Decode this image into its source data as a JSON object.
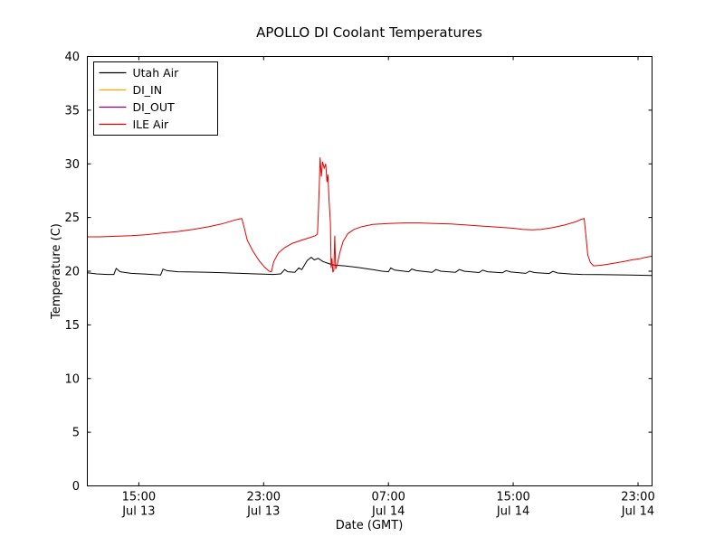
{
  "chart_data": {
    "type": "line",
    "title": "APOLLO DI Coolant Temperatures",
    "xlabel": "Date (GMT)",
    "ylabel": "Temperature (C)",
    "x_unit": "hours since Jul 13 00:00 GMT",
    "xlim": [
      11.7,
      47.9
    ],
    "ylim": [
      0,
      40
    ],
    "grid": false,
    "frame": true,
    "yticks": [
      0,
      5,
      10,
      15,
      20,
      25,
      30,
      35,
      40
    ],
    "xticks": [
      {
        "value": 15,
        "time": "15:00",
        "date": "Jul 13"
      },
      {
        "value": 23,
        "time": "23:00",
        "date": "Jul 13"
      },
      {
        "value": 31,
        "time": "07:00",
        "date": "Jul 14"
      },
      {
        "value": 39,
        "time": "15:00",
        "date": "Jul 14"
      },
      {
        "value": 47,
        "time": "23:00",
        "date": "Jul 14"
      }
    ],
    "legend": {
      "position": "upper left",
      "entries": [
        "Utah Air",
        "DI_IN",
        "DI_OUT",
        "ILE Air"
      ]
    },
    "series": [
      {
        "name": "Utah Air",
        "color": "#000000",
        "points": [
          [
            11.7,
            19.85
          ],
          [
            12.3,
            19.75
          ],
          [
            13.0,
            19.7
          ],
          [
            13.4,
            19.7
          ],
          [
            13.55,
            20.25
          ],
          [
            13.8,
            19.95
          ],
          [
            14.5,
            19.8
          ],
          [
            15.5,
            19.72
          ],
          [
            16.4,
            19.65
          ],
          [
            16.55,
            20.2
          ],
          [
            16.8,
            20.05
          ],
          [
            17.5,
            19.95
          ],
          [
            18.5,
            19.92
          ],
          [
            19.5,
            19.9
          ],
          [
            20.5,
            19.85
          ],
          [
            21.5,
            19.8
          ],
          [
            22.5,
            19.75
          ],
          [
            23.0,
            19.72
          ],
          [
            23.6,
            19.7
          ],
          [
            24.1,
            19.75
          ],
          [
            24.35,
            20.15
          ],
          [
            24.55,
            19.95
          ],
          [
            25.0,
            19.9
          ],
          [
            25.25,
            20.3
          ],
          [
            25.45,
            20.15
          ],
          [
            25.8,
            21.0
          ],
          [
            26.05,
            21.3
          ],
          [
            26.25,
            21.05
          ],
          [
            26.5,
            21.2
          ],
          [
            26.8,
            20.9
          ],
          [
            27.1,
            20.75
          ],
          [
            27.4,
            20.6
          ],
          [
            27.7,
            20.55
          ],
          [
            28.2,
            20.5
          ],
          [
            29.0,
            20.35
          ],
          [
            30.0,
            20.15
          ],
          [
            30.6,
            20.0
          ],
          [
            31.0,
            19.95
          ],
          [
            31.15,
            20.3
          ],
          [
            31.4,
            20.1
          ],
          [
            32.3,
            19.95
          ],
          [
            32.5,
            20.2
          ],
          [
            32.8,
            20.05
          ],
          [
            33.8,
            19.9
          ],
          [
            34.05,
            20.15
          ],
          [
            34.35,
            20.0
          ],
          [
            35.3,
            19.9
          ],
          [
            35.55,
            20.15
          ],
          [
            35.85,
            20.0
          ],
          [
            36.8,
            19.87
          ],
          [
            37.05,
            20.1
          ],
          [
            37.35,
            19.95
          ],
          [
            38.3,
            19.85
          ],
          [
            38.55,
            20.05
          ],
          [
            38.85,
            19.92
          ],
          [
            39.8,
            19.8
          ],
          [
            40.05,
            20.0
          ],
          [
            40.35,
            19.87
          ],
          [
            41.3,
            19.78
          ],
          [
            41.55,
            19.98
          ],
          [
            41.85,
            19.83
          ],
          [
            42.8,
            19.73
          ],
          [
            43.4,
            19.7
          ],
          [
            44.5,
            19.68
          ],
          [
            45.5,
            19.66
          ],
          [
            46.5,
            19.64
          ],
          [
            47.9,
            19.6
          ]
        ]
      },
      {
        "name": "DI_IN",
        "color": "#ffa500",
        "points": []
      },
      {
        "name": "DI_OUT",
        "color": "#800080",
        "points": []
      },
      {
        "name": "ILE Air",
        "color": "#e60000",
        "points": [
          [
            11.7,
            23.2
          ],
          [
            12.5,
            23.2
          ],
          [
            13.5,
            23.25
          ],
          [
            14.5,
            23.3
          ],
          [
            15.5,
            23.4
          ],
          [
            16.5,
            23.55
          ],
          [
            17.5,
            23.7
          ],
          [
            18.5,
            23.9
          ],
          [
            19.5,
            24.15
          ],
          [
            20.3,
            24.4
          ],
          [
            21.0,
            24.7
          ],
          [
            21.45,
            24.88
          ],
          [
            21.6,
            24.9
          ],
          [
            21.75,
            24.1
          ],
          [
            21.95,
            22.9
          ],
          [
            22.3,
            21.9
          ],
          [
            22.7,
            21.0
          ],
          [
            23.05,
            20.4
          ],
          [
            23.35,
            20.0
          ],
          [
            23.5,
            19.95
          ],
          [
            23.65,
            20.9
          ],
          [
            23.95,
            21.7
          ],
          [
            24.35,
            22.2
          ],
          [
            24.85,
            22.6
          ],
          [
            25.45,
            22.9
          ],
          [
            26.0,
            23.15
          ],
          [
            26.3,
            23.3
          ],
          [
            26.45,
            23.45
          ],
          [
            26.52,
            26.0
          ],
          [
            26.58,
            28.5
          ],
          [
            26.62,
            30.6
          ],
          [
            26.7,
            28.8
          ],
          [
            26.78,
            30.2
          ],
          [
            26.88,
            29.6
          ],
          [
            26.98,
            30.0
          ],
          [
            27.06,
            28.3
          ],
          [
            27.12,
            29.0
          ],
          [
            27.2,
            26.5
          ],
          [
            27.28,
            24.5
          ],
          [
            27.33,
            20.3
          ],
          [
            27.38,
            21.2
          ],
          [
            27.44,
            19.9
          ],
          [
            27.5,
            20.1
          ],
          [
            27.56,
            23.3
          ],
          [
            27.62,
            20.2
          ],
          [
            27.72,
            20.6
          ],
          [
            27.9,
            21.8
          ],
          [
            28.1,
            22.8
          ],
          [
            28.4,
            23.5
          ],
          [
            28.8,
            23.9
          ],
          [
            29.3,
            24.15
          ],
          [
            30.0,
            24.35
          ],
          [
            31.0,
            24.45
          ],
          [
            32.0,
            24.5
          ],
          [
            33.0,
            24.5
          ],
          [
            34.0,
            24.45
          ],
          [
            35.0,
            24.4
          ],
          [
            36.0,
            24.3
          ],
          [
            37.0,
            24.2
          ],
          [
            38.0,
            24.1
          ],
          [
            39.0,
            24.0
          ],
          [
            39.6,
            23.9
          ],
          [
            40.2,
            23.85
          ],
          [
            40.8,
            23.9
          ],
          [
            41.5,
            24.05
          ],
          [
            42.3,
            24.3
          ],
          [
            43.0,
            24.6
          ],
          [
            43.4,
            24.85
          ],
          [
            43.55,
            24.9
          ],
          [
            43.65,
            23.5
          ],
          [
            43.78,
            21.5
          ],
          [
            43.95,
            20.8
          ],
          [
            44.15,
            20.5
          ],
          [
            44.6,
            20.55
          ],
          [
            45.1,
            20.65
          ],
          [
            45.6,
            20.78
          ],
          [
            46.1,
            20.9
          ],
          [
            46.6,
            21.05
          ],
          [
            47.1,
            21.15
          ],
          [
            47.5,
            21.3
          ],
          [
            47.9,
            21.4
          ]
        ]
      }
    ],
    "colors": {
      "background": "#ffffff",
      "axes": "#000000",
      "utah_air": "#000000",
      "di_in": "#ffa500",
      "di_out": "#800080",
      "ile_air": "#e60000"
    }
  }
}
